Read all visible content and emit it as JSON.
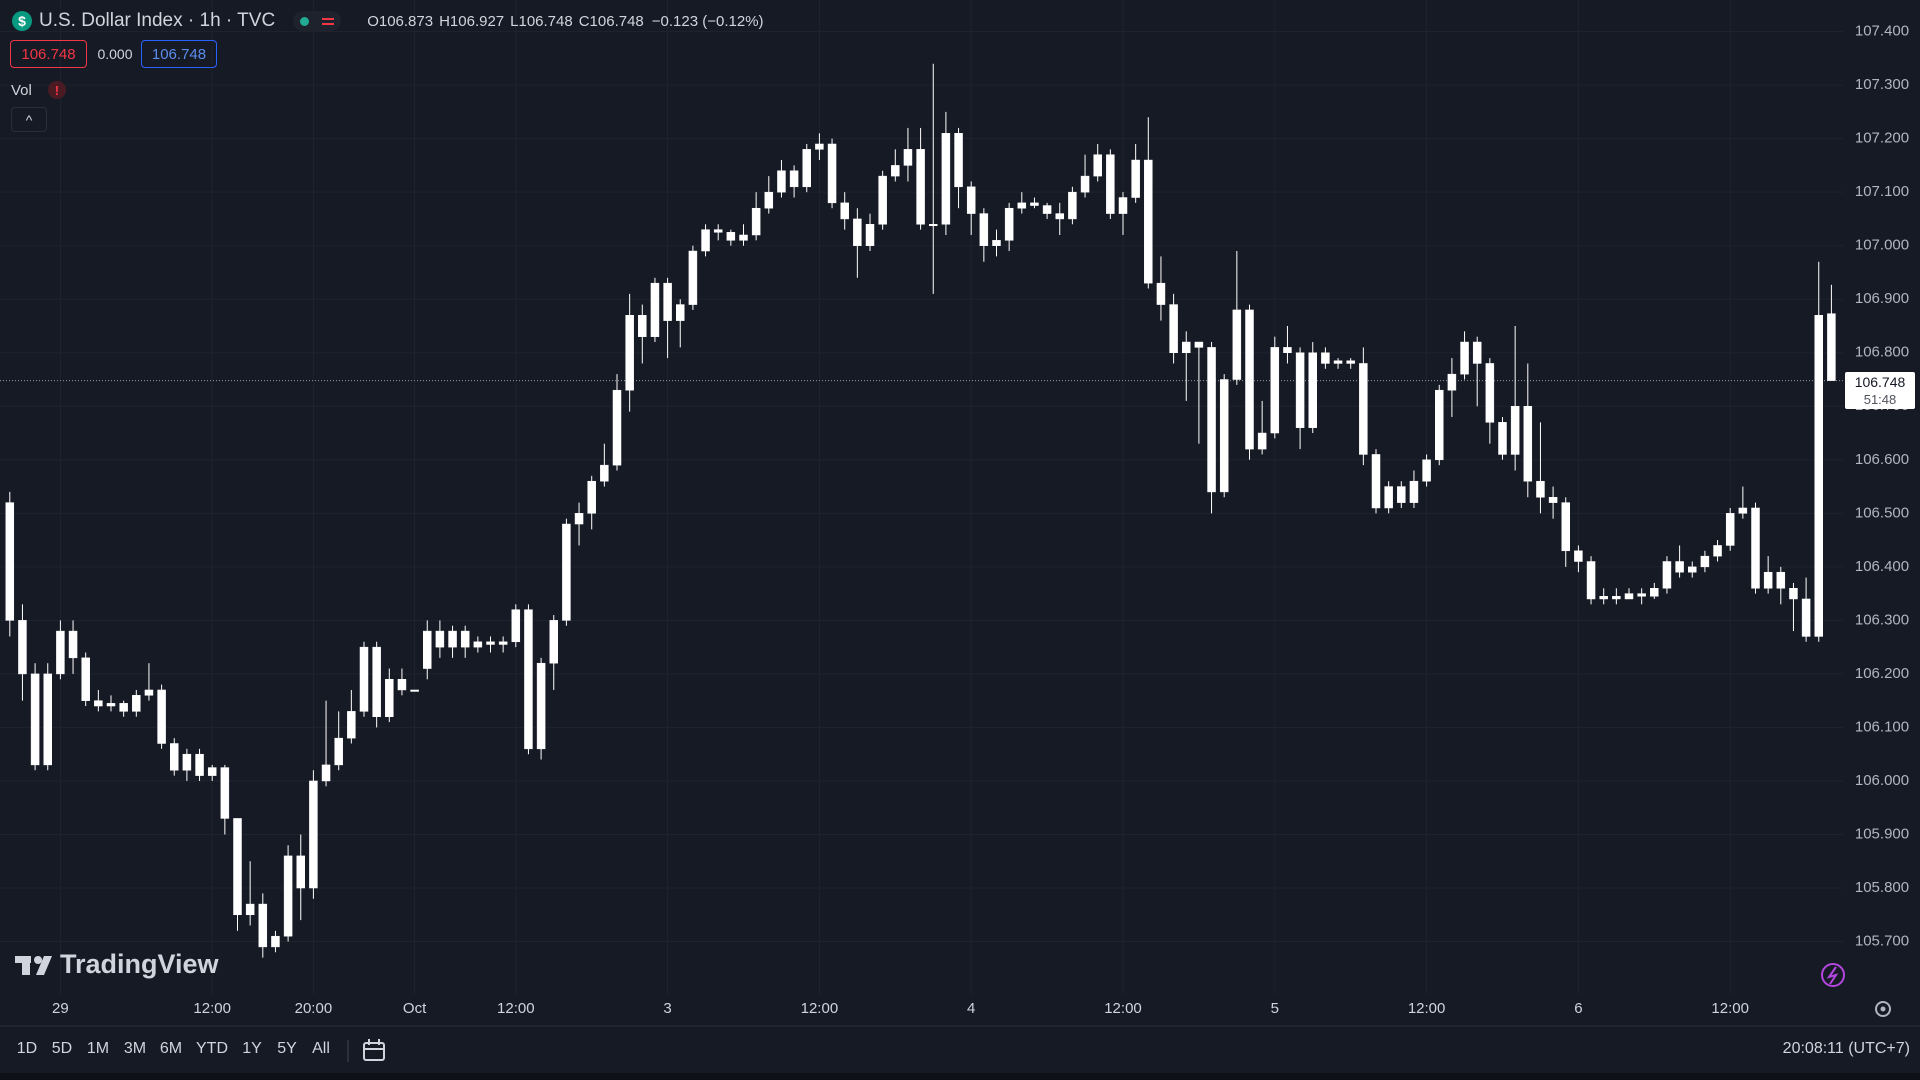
{
  "header": {
    "symbol_title": "U.S. Dollar Index · 1h · TVC",
    "ohlc": [
      "O106.873",
      "H106.927",
      "L106.748",
      "C106.748"
    ],
    "change": "−0.123 (−0.12%)",
    "bid": "106.748",
    "spread": "0.000",
    "ask": "106.748",
    "volume_label": "Vol"
  },
  "chart_data": {
    "type": "candlestick",
    "color": "#ffffff",
    "grid": true,
    "categories": [
      null,
      null,
      null,
      null,
      "29",
      null,
      null,
      null,
      null,
      null,
      null,
      null,
      null,
      null,
      null,
      null,
      "12:00",
      null,
      null,
      null,
      null,
      null,
      null,
      null,
      "20:00",
      null,
      null,
      null,
      null,
      null,
      null,
      null,
      "Oct",
      null,
      null,
      null,
      null,
      null,
      null,
      null,
      "12:00",
      null,
      null,
      null,
      null,
      null,
      null,
      null,
      null,
      null,
      null,
      null,
      "3",
      null,
      null,
      null,
      null,
      null,
      null,
      null,
      null,
      null,
      null,
      null,
      "12:00",
      null,
      null,
      null,
      null,
      null,
      null,
      null,
      null,
      null,
      null,
      null,
      "4",
      null,
      null,
      null,
      null,
      null,
      null,
      null,
      null,
      null,
      null,
      null,
      "12:00",
      null,
      null,
      null,
      null,
      null,
      null,
      null,
      null,
      null,
      null,
      null,
      "5",
      null,
      null,
      null,
      null,
      null,
      null,
      null,
      null,
      null,
      null,
      null,
      "12:00",
      null,
      null,
      null,
      null,
      null,
      null,
      null,
      null,
      null,
      null,
      null,
      "6",
      null,
      null,
      null,
      null,
      null,
      null,
      null,
      null,
      null,
      null,
      null,
      "12:00",
      null,
      null,
      null,
      null,
      null,
      null,
      null,
      null
    ],
    "open": [
      106.52,
      106.3,
      106.2,
      106.03,
      106.2,
      106.28,
      106.23,
      106.15,
      106.14,
      106.145,
      106.13,
      106.16,
      106.17,
      106.07,
      106.02,
      106.05,
      106.01,
      106.025,
      105.93,
      105.75,
      105.77,
      105.69,
      105.71,
      105.86,
      105.8,
      106.0,
      106.03,
      106.08,
      106.13,
      106.25,
      106.12,
      106.19,
      106.17,
      106.21,
      106.28,
      106.25,
      106.28,
      106.25,
      106.26,
      106.255,
      106.26,
      106.32,
      106.06,
      106.22,
      106.3,
      106.48,
      106.5,
      106.56,
      106.59,
      106.73,
      106.87,
      106.83,
      106.93,
      106.86,
      106.89,
      106.99,
      107.03,
      107.025,
      107.01,
      107.02,
      107.07,
      107.1,
      107.14,
      107.11,
      107.18,
      107.19,
      107.08,
      107.05,
      107.0,
      107.04,
      107.13,
      107.15,
      107.18,
      107.04,
      107.04,
      107.21,
      107.11,
      107.06,
      107.0,
      107.01,
      107.07,
      107.08,
      107.075,
      107.06,
      107.05,
      107.1,
      107.13,
      107.17,
      107.06,
      107.09,
      107.16,
      106.93,
      106.89,
      106.8,
      106.82,
      106.81,
      106.54,
      106.75,
      106.88,
      106.62,
      106.65,
      106.81,
      106.8,
      106.66,
      106.8,
      106.78,
      106.785,
      106.78,
      106.61,
      106.51,
      106.55,
      106.52,
      106.56,
      106.6,
      106.73,
      106.76,
      106.82,
      106.78,
      106.67,
      106.61,
      106.7,
      106.56,
      106.53,
      106.52,
      106.43,
      106.41,
      106.34,
      106.345,
      106.34,
      106.35,
      106.345,
      106.36,
      106.41,
      106.39,
      106.4,
      106.42,
      106.44,
      106.5,
      106.51,
      106.36,
      106.39,
      106.36,
      106.34,
      106.27,
      106.873
    ],
    "high": [
      106.54,
      106.33,
      106.22,
      106.22,
      106.3,
      106.3,
      106.24,
      106.17,
      106.16,
      106.15,
      106.17,
      106.22,
      106.18,
      106.08,
      106.06,
      106.06,
      106.03,
      106.03,
      105.93,
      105.85,
      105.79,
      105.72,
      105.88,
      105.9,
      106.02,
      106.15,
      106.13,
      106.17,
      106.26,
      106.26,
      106.21,
      106.21,
      106.17,
      106.3,
      106.3,
      106.29,
      106.29,
      106.27,
      106.27,
      106.27,
      106.33,
      106.33,
      106.23,
      106.31,
      106.49,
      106.52,
      106.57,
      106.63,
      106.76,
      106.91,
      106.89,
      106.94,
      106.94,
      106.9,
      107.0,
      107.04,
      107.04,
      107.03,
      107.04,
      107.1,
      107.13,
      107.16,
      107.15,
      107.19,
      107.21,
      107.2,
      107.1,
      107.07,
      107.06,
      107.14,
      107.18,
      107.22,
      107.22,
      107.34,
      107.25,
      107.22,
      107.12,
      107.07,
      107.03,
      107.08,
      107.1,
      107.09,
      107.08,
      107.08,
      107.11,
      107.17,
      107.19,
      107.18,
      107.1,
      107.19,
      107.24,
      106.98,
      106.91,
      106.84,
      106.82,
      106.82,
      106.76,
      106.99,
      106.89,
      106.71,
      106.83,
      106.85,
      106.81,
      106.82,
      106.81,
      106.79,
      106.79,
      106.81,
      106.62,
      106.56,
      106.56,
      106.58,
      106.61,
      106.74,
      106.79,
      106.84,
      106.83,
      106.79,
      106.68,
      106.85,
      106.78,
      106.67,
      106.55,
      106.53,
      106.44,
      106.42,
      106.36,
      106.36,
      106.36,
      106.36,
      106.37,
      106.42,
      106.44,
      106.41,
      106.43,
      106.45,
      106.51,
      106.55,
      106.52,
      106.42,
      106.4,
      106.37,
      106.38,
      106.97,
      106.927
    ],
    "low": [
      106.27,
      106.15,
      106.02,
      106.02,
      106.19,
      106.2,
      106.14,
      106.13,
      106.13,
      106.12,
      106.12,
      106.15,
      106.06,
      106.01,
      106.0,
      106.0,
      106.0,
      105.9,
      105.72,
      105.73,
      105.67,
      105.68,
      105.7,
      105.74,
      105.78,
      105.99,
      106.02,
      106.07,
      106.12,
      106.1,
      106.11,
      106.16,
      106.17,
      106.19,
      106.23,
      106.23,
      106.23,
      106.24,
      106.24,
      106.24,
      106.25,
      106.05,
      106.04,
      106.17,
      106.29,
      106.44,
      106.47,
      106.55,
      106.58,
      106.69,
      106.78,
      106.82,
      106.79,
      106.81,
      106.88,
      106.98,
      107.01,
      107.0,
      107.0,
      107.01,
      107.06,
      107.09,
      107.09,
      107.1,
      107.16,
      107.07,
      107.03,
      106.94,
      106.99,
      107.03,
      107.12,
      107.12,
      107.03,
      106.91,
      107.02,
      107.07,
      107.02,
      106.97,
      106.98,
      106.99,
      107.06,
      107.07,
      107.05,
      107.02,
      107.04,
      107.09,
      107.12,
      107.05,
      107.02,
      107.08,
      106.92,
      106.86,
      106.78,
      106.71,
      106.63,
      106.5,
      106.53,
      106.74,
      106.6,
      106.61,
      106.64,
      106.78,
      106.62,
      106.65,
      106.77,
      106.77,
      106.77,
      106.59,
      106.5,
      106.5,
      106.51,
      106.51,
      106.55,
      106.59,
      106.68,
      106.75,
      106.7,
      106.63,
      106.6,
      106.58,
      106.53,
      106.5,
      106.49,
      106.4,
      106.39,
      106.33,
      106.33,
      106.33,
      106.34,
      106.33,
      106.34,
      106.35,
      106.38,
      106.38,
      106.39,
      106.41,
      106.43,
      106.49,
      106.35,
      106.35,
      106.33,
      106.28,
      106.26,
      106.26,
      106.748
    ],
    "close": [
      106.3,
      106.2,
      106.03,
      106.2,
      106.28,
      106.23,
      106.15,
      106.14,
      106.145,
      106.13,
      106.16,
      106.17,
      106.07,
      106.02,
      106.05,
      106.01,
      106.025,
      105.93,
      105.75,
      105.77,
      105.69,
      105.71,
      105.86,
      105.8,
      106.0,
      106.03,
      106.08,
      106.13,
      106.25,
      106.12,
      106.19,
      106.17,
      106.17,
      106.28,
      106.25,
      106.28,
      106.25,
      106.26,
      106.255,
      106.26,
      106.32,
      106.06,
      106.22,
      106.3,
      106.48,
      106.5,
      106.56,
      106.59,
      106.73,
      106.87,
      106.83,
      106.93,
      106.86,
      106.89,
      106.99,
      107.03,
      107.025,
      107.01,
      107.02,
      107.07,
      107.1,
      107.14,
      107.11,
      107.18,
      107.19,
      107.08,
      107.05,
      107.0,
      107.04,
      107.13,
      107.15,
      107.18,
      107.04,
      107.04,
      107.21,
      107.11,
      107.06,
      107.0,
      107.01,
      107.07,
      107.08,
      107.075,
      107.06,
      107.05,
      107.1,
      107.13,
      107.17,
      107.06,
      107.09,
      107.16,
      106.93,
      106.89,
      106.8,
      106.82,
      106.81,
      106.54,
      106.75,
      106.88,
      106.62,
      106.65,
      106.81,
      106.8,
      106.66,
      106.8,
      106.78,
      106.785,
      106.78,
      106.61,
      106.51,
      106.55,
      106.52,
      106.56,
      106.6,
      106.73,
      106.76,
      106.82,
      106.78,
      106.67,
      106.61,
      106.7,
      106.56,
      106.53,
      106.52,
      106.43,
      106.41,
      106.34,
      106.345,
      106.34,
      106.35,
      106.345,
      106.36,
      106.41,
      106.39,
      106.4,
      106.42,
      106.44,
      106.5,
      106.51,
      106.36,
      106.39,
      106.36,
      106.34,
      106.27,
      106.87,
      106.748
    ],
    "ylim": [
      105.602,
      107.459
    ],
    "yticks": [
      {
        "value": 105.7,
        "label": "105.700"
      },
      {
        "value": 105.8,
        "label": "105.800"
      },
      {
        "value": 105.9,
        "label": "105.900"
      },
      {
        "value": 106.0,
        "label": "106.000"
      },
      {
        "value": 106.1,
        "label": "106.100"
      },
      {
        "value": 106.2,
        "label": "106.200"
      },
      {
        "value": 106.3,
        "label": "106.300"
      },
      {
        "value": 106.4,
        "label": "106.400"
      },
      {
        "value": 106.5,
        "label": "106.500"
      },
      {
        "value": 106.6,
        "label": "106.600"
      },
      {
        "value": 106.7,
        "label": "106.700"
      },
      {
        "value": 106.8,
        "label": "106.800"
      },
      {
        "value": 106.9,
        "label": "106.900"
      },
      {
        "value": 107.0,
        "label": "107.000"
      },
      {
        "value": 107.1,
        "label": "107.100"
      },
      {
        "value": 107.2,
        "label": "107.200"
      },
      {
        "value": 107.3,
        "label": "107.300"
      },
      {
        "value": 107.4,
        "label": "107.400"
      }
    ],
    "last_price": 106.748,
    "countdown": "51:48"
  },
  "watermark": "TradingView",
  "toolbar": {
    "ranges": [
      "1D",
      "5D",
      "1M",
      "3M",
      "6M",
      "YTD",
      "1Y",
      "5Y",
      "All"
    ],
    "clock": "20:08:11 (UTC+7)"
  }
}
